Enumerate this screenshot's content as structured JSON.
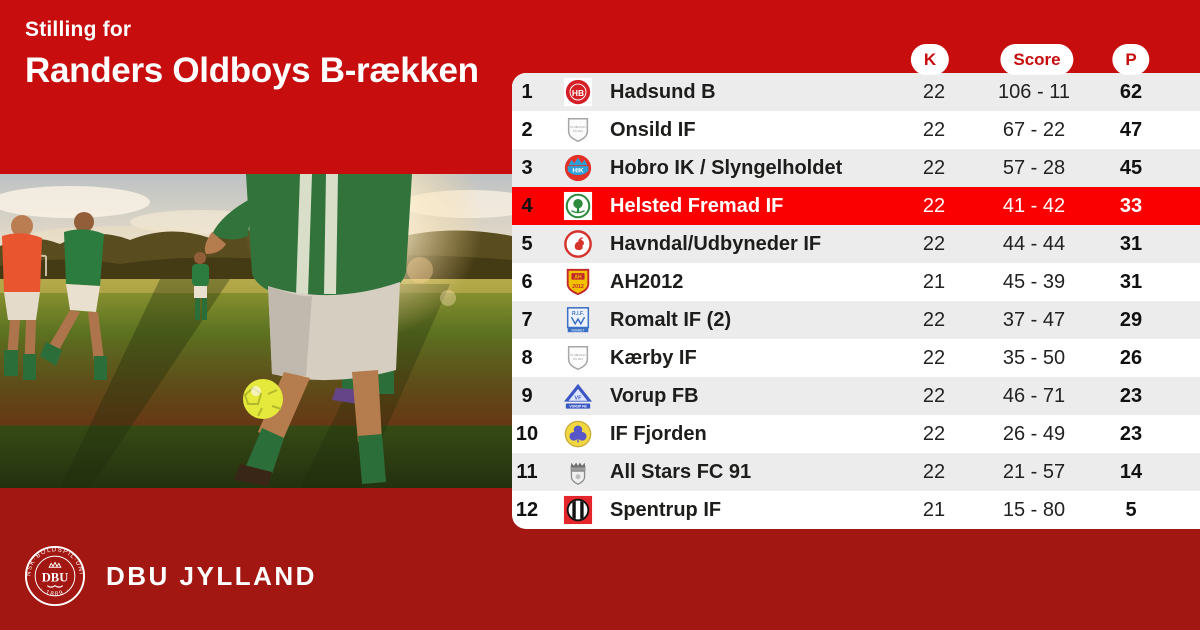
{
  "page": {
    "eyebrow": "Stilling for",
    "title": "Randers Oldboys B-rækken"
  },
  "colors": {
    "banner_red": "#c70d0e",
    "highlight_red": "#fb0000",
    "footer_red": "#a31712",
    "row_alt_gray": "#ececec",
    "pill_text_red": "#c70d0e"
  },
  "table": {
    "headers": [
      "K",
      "Score",
      "P"
    ],
    "rows": [
      {
        "pos": "1",
        "team": "Hadsund B",
        "logo": "hadsund-b",
        "k": "22",
        "score": "106 - 11",
        "p": "62",
        "highlighted": false
      },
      {
        "pos": "2",
        "team": "Onsild IF",
        "logo": "placeholder-shield",
        "k": "22",
        "score": "67 - 22",
        "p": "47",
        "highlighted": false
      },
      {
        "pos": "3",
        "team": "Hobro IK / Slyngelholdet",
        "logo": "hobro-ik",
        "k": "22",
        "score": "57 - 28",
        "p": "45",
        "highlighted": false
      },
      {
        "pos": "4",
        "team": "Helsted Fremad IF",
        "logo": "helsted-fremad",
        "k": "22",
        "score": "41 - 42",
        "p": "33",
        "highlighted": true
      },
      {
        "pos": "5",
        "team": "Havndal/Udbyneder IF",
        "logo": "havndal-udbyneder",
        "k": "22",
        "score": "44 - 44",
        "p": "31",
        "highlighted": false
      },
      {
        "pos": "6",
        "team": "AH2012",
        "logo": "ah2012",
        "k": "21",
        "score": "45 - 39",
        "p": "31",
        "highlighted": false
      },
      {
        "pos": "7",
        "team": "Romalt IF  (2)",
        "logo": "romalt-if",
        "k": "22",
        "score": "37 - 47",
        "p": "29",
        "highlighted": false
      },
      {
        "pos": "8",
        "team": "Kærby IF",
        "logo": "placeholder-shield",
        "k": "22",
        "score": "35 - 50",
        "p": "26",
        "highlighted": false
      },
      {
        "pos": "9",
        "team": "Vorup FB",
        "logo": "vorup-fb",
        "k": "22",
        "score": "46 - 71",
        "p": "23",
        "highlighted": false
      },
      {
        "pos": "10",
        "team": "IF Fjorden",
        "logo": "if-fjorden",
        "k": "22",
        "score": "26 - 49",
        "p": "23",
        "highlighted": false
      },
      {
        "pos": "11",
        "team": "All Stars FC 91",
        "logo": "all-stars-fc-91",
        "k": "22",
        "score": "21 - 57",
        "p": "14",
        "highlighted": false
      },
      {
        "pos": "12",
        "team": "Spentrup IF",
        "logo": "spentrup-if",
        "k": "21",
        "score": "15 - 80",
        "p": "5",
        "highlighted": false
      }
    ]
  },
  "footer": {
    "brand": "DBU JYLLAND",
    "seal_ring_text": "DANSK BOLDSPIL-UNION",
    "seal_year": "· 1889 ·",
    "seal_center": "DBU"
  }
}
